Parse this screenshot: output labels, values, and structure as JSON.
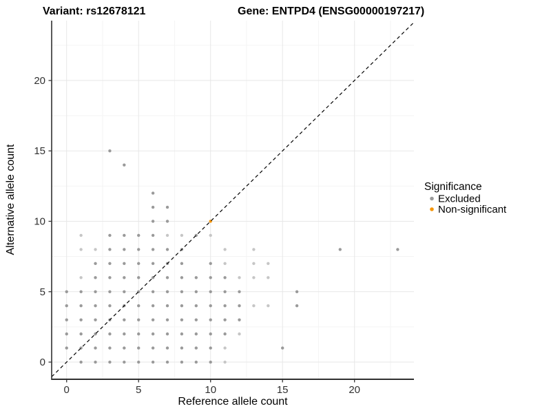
{
  "page": {
    "title_left": "Variant: rs12678121",
    "title_right": "Gene: ENTPD4 (ENSG00000197217)"
  },
  "chart_data": {
    "type": "scatter",
    "title": "Variant: rs12678121   Gene: ENTPD4 (ENSG00000197217)",
    "xlabel": "Reference allele count",
    "ylabel": "Alternative allele count",
    "x_ticks": [
      0,
      5,
      10,
      15,
      20
    ],
    "y_ticks": [
      0,
      5,
      10,
      15,
      20
    ],
    "x_minor": [
      2.5,
      7.5,
      12.5,
      17.5,
      22.5
    ],
    "y_minor": [
      2.5,
      7.5,
      12.5,
      17.5,
      22.5
    ],
    "xlim": [
      -1.04,
      24.13
    ],
    "ylim": [
      -1.22,
      24.25
    ],
    "grid": "on",
    "legend_position": "right",
    "legend": {
      "title": "Significance",
      "items": [
        {
          "label": "Excluded",
          "color": "#9A9A9A"
        },
        {
          "label": "Non-significant",
          "color": "#F5960A"
        }
      ]
    },
    "diagonal_line": {
      "style": "dashed",
      "equation": "y = x",
      "color": "#000000"
    },
    "colors": {
      "excluded": "#9A9A9A",
      "excluded_light": "#C6C6C6",
      "non_significant": "#F5960A",
      "grid_major": "#E7E7E7",
      "grid_minor": "#F3F3F3",
      "axis_line": "#2F2F2F"
    },
    "series": [
      {
        "name": "Excluded",
        "points": [
          [
            1,
            0,
            0
          ],
          [
            2,
            0,
            0
          ],
          [
            3,
            0,
            0
          ],
          [
            4,
            0,
            0
          ],
          [
            5,
            0,
            0
          ],
          [
            6,
            0,
            0
          ],
          [
            7,
            0,
            0
          ],
          [
            8,
            0,
            0
          ],
          [
            9,
            0,
            0
          ],
          [
            10,
            0,
            0
          ],
          [
            11,
            0,
            1
          ],
          [
            0,
            1,
            0
          ],
          [
            1,
            1,
            0
          ],
          [
            2,
            1,
            0
          ],
          [
            3,
            1,
            0
          ],
          [
            4,
            1,
            0
          ],
          [
            5,
            1,
            0
          ],
          [
            6,
            1,
            0
          ],
          [
            7,
            1,
            0
          ],
          [
            8,
            1,
            0
          ],
          [
            9,
            1,
            0
          ],
          [
            10,
            1,
            0
          ],
          [
            11,
            1,
            1
          ],
          [
            15,
            1,
            0
          ],
          [
            0,
            2,
            0
          ],
          [
            1,
            2,
            0
          ],
          [
            2,
            2,
            0
          ],
          [
            3,
            2,
            0
          ],
          [
            4,
            2,
            0
          ],
          [
            5,
            2,
            0
          ],
          [
            6,
            2,
            0
          ],
          [
            7,
            2,
            0
          ],
          [
            8,
            2,
            0
          ],
          [
            9,
            2,
            0
          ],
          [
            10,
            2,
            0
          ],
          [
            11,
            2,
            0
          ],
          [
            12,
            2,
            1
          ],
          [
            0,
            3,
            0
          ],
          [
            1,
            3,
            0
          ],
          [
            2,
            3,
            0
          ],
          [
            3,
            3,
            0
          ],
          [
            4,
            3,
            0
          ],
          [
            5,
            3,
            0
          ],
          [
            6,
            3,
            0
          ],
          [
            7,
            3,
            0
          ],
          [
            8,
            3,
            0
          ],
          [
            9,
            3,
            0
          ],
          [
            10,
            3,
            0
          ],
          [
            11,
            3,
            0
          ],
          [
            12,
            3,
            0
          ],
          [
            0,
            4,
            0
          ],
          [
            1,
            4,
            0
          ],
          [
            2,
            4,
            0
          ],
          [
            3,
            4,
            0
          ],
          [
            4,
            4,
            0
          ],
          [
            5,
            4,
            0
          ],
          [
            6,
            4,
            0
          ],
          [
            7,
            4,
            0
          ],
          [
            8,
            4,
            0
          ],
          [
            9,
            4,
            0
          ],
          [
            10,
            4,
            0
          ],
          [
            11,
            4,
            0
          ],
          [
            12,
            4,
            0
          ],
          [
            13,
            4,
            1
          ],
          [
            14,
            4,
            1
          ],
          [
            16,
            4,
            0
          ],
          [
            0,
            5,
            0
          ],
          [
            1,
            5,
            0
          ],
          [
            2,
            5,
            0
          ],
          [
            3,
            5,
            0
          ],
          [
            4,
            5,
            0
          ],
          [
            5,
            5,
            0
          ],
          [
            6,
            5,
            0
          ],
          [
            7,
            5,
            0
          ],
          [
            8,
            5,
            0
          ],
          [
            9,
            5,
            0
          ],
          [
            10,
            5,
            0
          ],
          [
            11,
            5,
            0
          ],
          [
            12,
            5,
            0
          ],
          [
            16,
            5,
            0
          ],
          [
            1,
            6,
            1
          ],
          [
            2,
            6,
            0
          ],
          [
            3,
            6,
            0
          ],
          [
            4,
            6,
            0
          ],
          [
            5,
            6,
            0
          ],
          [
            6,
            6,
            0
          ],
          [
            7,
            6,
            0
          ],
          [
            8,
            6,
            0
          ],
          [
            9,
            6,
            0
          ],
          [
            10,
            6,
            0
          ],
          [
            11,
            6,
            0
          ],
          [
            12,
            6,
            1
          ],
          [
            13,
            6,
            1
          ],
          [
            14,
            6,
            1
          ],
          [
            2,
            7,
            0
          ],
          [
            3,
            7,
            0
          ],
          [
            4,
            7,
            0
          ],
          [
            5,
            7,
            0
          ],
          [
            6,
            7,
            0
          ],
          [
            7,
            7,
            0
          ],
          [
            8,
            7,
            0
          ],
          [
            10,
            7,
            0
          ],
          [
            11,
            7,
            1
          ],
          [
            13,
            7,
            1
          ],
          [
            14,
            7,
            1
          ],
          [
            1,
            8,
            1
          ],
          [
            2,
            8,
            1
          ],
          [
            3,
            8,
            0
          ],
          [
            4,
            8,
            0
          ],
          [
            5,
            8,
            0
          ],
          [
            6,
            8,
            0
          ],
          [
            7,
            8,
            0
          ],
          [
            8,
            8,
            0
          ],
          [
            11,
            8,
            1
          ],
          [
            13,
            8,
            1
          ],
          [
            19,
            8,
            0
          ],
          [
            23,
            8,
            0
          ],
          [
            1,
            9,
            1
          ],
          [
            3,
            9,
            0
          ],
          [
            4,
            9,
            0
          ],
          [
            5,
            9,
            0
          ],
          [
            6,
            9,
            0
          ],
          [
            7,
            9,
            1
          ],
          [
            8,
            9,
            1
          ],
          [
            9,
            9,
            0
          ],
          [
            10,
            9,
            1
          ],
          [
            6,
            10,
            0
          ],
          [
            7,
            10,
            0
          ],
          [
            6,
            11,
            0
          ],
          [
            7,
            11,
            0
          ],
          [
            6,
            12,
            0
          ],
          [
            4,
            14,
            0
          ],
          [
            3,
            15,
            0
          ]
        ]
      },
      {
        "name": "Non-significant",
        "points": [
          [
            10,
            10,
            0
          ]
        ]
      }
    ],
    "panel": {
      "l": 75,
      "t": 30,
      "r": 601,
      "b": 551
    },
    "point_radius": 2.2
  }
}
